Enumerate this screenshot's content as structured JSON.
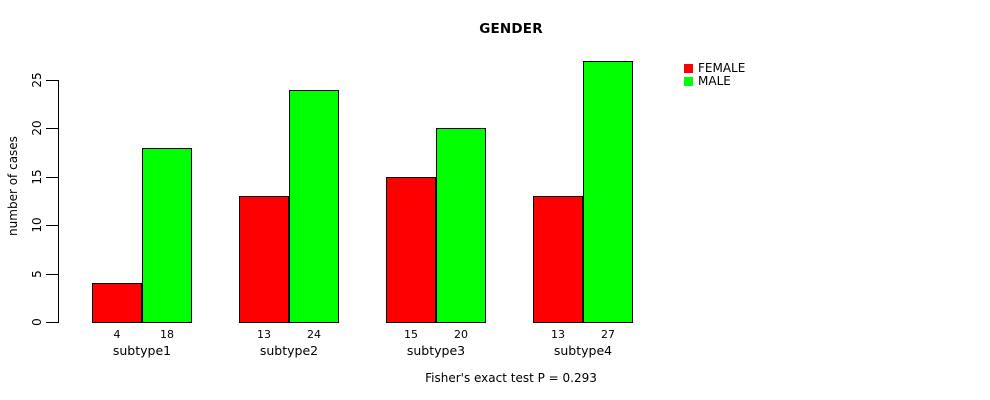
{
  "chart_data": {
    "type": "bar",
    "title": "GENDER",
    "xlabel": "",
    "ylabel": "number of cases",
    "categories": [
      "subtype1",
      "subtype2",
      "subtype3",
      "subtype4"
    ],
    "series": [
      {
        "name": "FEMALE",
        "color": "#ff0000",
        "values": [
          4,
          13,
          15,
          13
        ]
      },
      {
        "name": "MALE",
        "color": "#00ff00",
        "values": [
          18,
          24,
          20,
          27
        ]
      }
    ],
    "bar_value_labels": [
      [
        4,
        18
      ],
      [
        13,
        24
      ],
      [
        15,
        20
      ],
      [
        13,
        27
      ]
    ],
    "yticks": [
      0,
      5,
      10,
      15,
      20,
      25
    ],
    "ylim": [
      0,
      27
    ],
    "grid": false,
    "legend": {
      "position": "top-right",
      "entries": [
        {
          "label": "FEMALE",
          "color": "#ff0000"
        },
        {
          "label": "MALE",
          "color": "#00ff00"
        }
      ]
    },
    "footnote": "Fisher's exact test P = 0.293",
    "colors": {
      "background": "#ffffff",
      "axis": "#000000",
      "text": "#000000"
    }
  }
}
